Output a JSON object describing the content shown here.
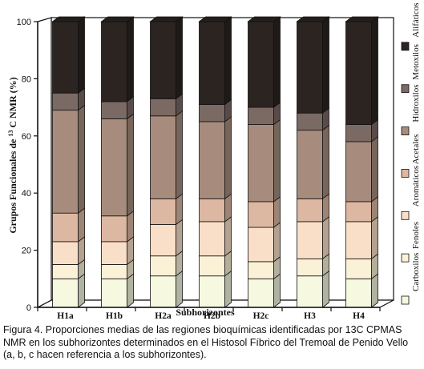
{
  "chart_data": {
    "type": "bar",
    "stacked": true,
    "ylabel_prefix": "Grupos Funcionales de",
    "ylabel_sup": "13",
    "ylabel_suffix": "C NMR (%)",
    "xlabel": "Subhorizontes",
    "ylim": [
      0,
      100
    ],
    "yticks": [
      0,
      20,
      40,
      60,
      80,
      100
    ],
    "categories": [
      "H1a",
      "H1b",
      "H2a",
      "H2b",
      "H2c",
      "H3",
      "H4"
    ],
    "series": [
      {
        "name": "Carboxilos",
        "color": "#f6f8e0",
        "values": [
          10,
          10,
          11,
          11,
          10,
          11,
          10
        ]
      },
      {
        "name": "Fenoles",
        "color": "#fbf1d6",
        "values": [
          5,
          5,
          7,
          7,
          6,
          6,
          7
        ]
      },
      {
        "name": "Aromáticos",
        "color": "#fadfc8",
        "values": [
          8,
          8,
          11,
          12,
          12,
          13,
          13
        ]
      },
      {
        "name": "Acetales",
        "color": "#dcb7a2",
        "values": [
          10,
          9,
          9,
          8,
          9,
          8,
          7
        ]
      },
      {
        "name": "Hidroxilos",
        "color": "#a78c7d",
        "values": [
          36,
          34,
          29,
          27,
          27,
          24,
          21
        ]
      },
      {
        "name": "Metoxilos",
        "color": "#7b6a64",
        "values": [
          6,
          6,
          6,
          6,
          6,
          6,
          6
        ]
      },
      {
        "name": "Alifáticos",
        "color": "#2b2421",
        "values": [
          25,
          28,
          27,
          29,
          30,
          32,
          36
        ]
      }
    ]
  },
  "caption": "Figura 4. Proporciones medias de las regiones bioquímicas identificadas por 13C CPMAS NMR en los subhorizontes determinados en el Histosol Fíbrico del Tremoal de Penido Vello (a, b, c hacen referencia a los subhorizontes)."
}
